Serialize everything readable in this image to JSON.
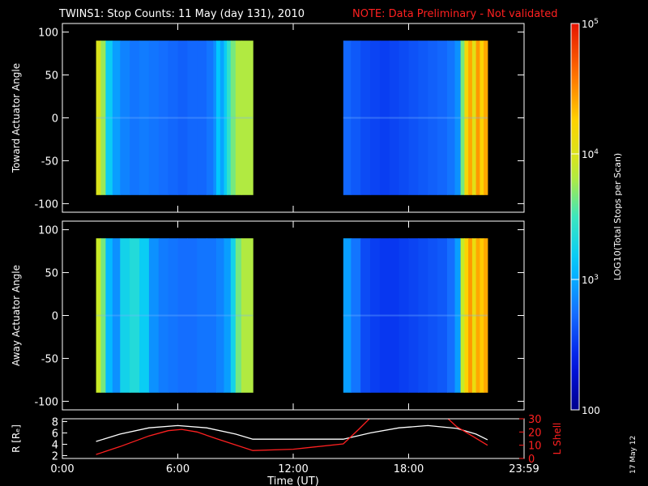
{
  "header": {
    "title": "TWINS1: Stop Counts: 11 May (day 131), 2010",
    "note": "NOTE: Data Preliminary - Not validated",
    "note_color": "#ff2020"
  },
  "footer": {
    "date_stamp": "17 May 12"
  },
  "chart_data": [
    {
      "type": "heatmap",
      "ylabel": "Toward Actuator Angle",
      "ylim": [
        -110,
        110
      ],
      "yticks": [
        "100",
        "50",
        "0",
        "-50",
        "-100"
      ],
      "xlim_hours": [
        0,
        24
      ],
      "y_extent": [
        -90,
        90
      ],
      "segments": [
        {
          "start": 1.75,
          "end": 9.9,
          "columns": [
            {
              "t": 1.75,
              "v": 0.66
            },
            {
              "t": 2.0,
              "v": 0.58
            },
            {
              "t": 2.25,
              "v": 0.4
            },
            {
              "t": 2.6,
              "v": 0.32
            },
            {
              "t": 3.0,
              "v": 0.28
            },
            {
              "t": 3.5,
              "v": 0.26
            },
            {
              "t": 4.0,
              "v": 0.27
            },
            {
              "t": 4.5,
              "v": 0.26
            },
            {
              "t": 5.0,
              "v": 0.25
            },
            {
              "t": 5.5,
              "v": 0.24
            },
            {
              "t": 6.0,
              "v": 0.23
            },
            {
              "t": 6.5,
              "v": 0.24
            },
            {
              "t": 7.0,
              "v": 0.24
            },
            {
              "t": 7.5,
              "v": 0.26
            },
            {
              "t": 7.85,
              "v": 0.3
            },
            {
              "t": 8.0,
              "v": 0.38
            },
            {
              "t": 8.2,
              "v": 0.33
            },
            {
              "t": 8.4,
              "v": 0.4
            },
            {
              "t": 8.55,
              "v": 0.48
            },
            {
              "t": 8.75,
              "v": 0.55
            },
            {
              "t": 9.0,
              "v": 0.6
            },
            {
              "t": 9.3,
              "v": 0.6
            }
          ]
        },
        {
          "start": 14.6,
          "end": 22.1,
          "columns": [
            {
              "t": 14.6,
              "v": 0.24
            },
            {
              "t": 15.0,
              "v": 0.22
            },
            {
              "t": 15.5,
              "v": 0.2
            },
            {
              "t": 16.0,
              "v": 0.19
            },
            {
              "t": 16.5,
              "v": 0.18
            },
            {
              "t": 17.0,
              "v": 0.19
            },
            {
              "t": 17.5,
              "v": 0.2
            },
            {
              "t": 18.0,
              "v": 0.21
            },
            {
              "t": 18.5,
              "v": 0.22
            },
            {
              "t": 19.0,
              "v": 0.23
            },
            {
              "t": 19.5,
              "v": 0.24
            },
            {
              "t": 20.0,
              "v": 0.26
            },
            {
              "t": 20.4,
              "v": 0.3
            },
            {
              "t": 20.7,
              "v": 0.55
            },
            {
              "t": 20.9,
              "v": 0.72
            },
            {
              "t": 21.1,
              "v": 0.8
            },
            {
              "t": 21.3,
              "v": 0.68
            },
            {
              "t": 21.5,
              "v": 0.82
            },
            {
              "t": 21.7,
              "v": 0.74
            },
            {
              "t": 21.9,
              "v": 0.8
            }
          ]
        }
      ]
    },
    {
      "type": "heatmap",
      "ylabel": "Away Actuator Angle",
      "ylim": [
        -110,
        110
      ],
      "yticks": [
        "100",
        "50",
        "0",
        "-50",
        "-100"
      ],
      "xlim_hours": [
        0,
        24
      ],
      "y_extent": [
        -90,
        90
      ],
      "segments": [
        {
          "start": 1.75,
          "end": 9.9,
          "columns": [
            {
              "t": 1.75,
              "v": 0.62
            },
            {
              "t": 2.0,
              "v": 0.55
            },
            {
              "t": 2.25,
              "v": 0.36
            },
            {
              "t": 2.6,
              "v": 0.3
            },
            {
              "t": 3.0,
              "v": 0.42
            },
            {
              "t": 3.5,
              "v": 0.45
            },
            {
              "t": 4.0,
              "v": 0.4
            },
            {
              "t": 4.5,
              "v": 0.3
            },
            {
              "t": 5.0,
              "v": 0.27
            },
            {
              "t": 5.5,
              "v": 0.26
            },
            {
              "t": 6.0,
              "v": 0.25
            },
            {
              "t": 6.5,
              "v": 0.25
            },
            {
              "t": 7.0,
              "v": 0.26
            },
            {
              "t": 7.5,
              "v": 0.26
            },
            {
              "t": 8.0,
              "v": 0.28
            },
            {
              "t": 8.4,
              "v": 0.32
            },
            {
              "t": 8.75,
              "v": 0.42
            },
            {
              "t": 9.0,
              "v": 0.55
            },
            {
              "t": 9.3,
              "v": 0.6
            }
          ]
        },
        {
          "start": 14.6,
          "end": 22.1,
          "columns": [
            {
              "t": 14.6,
              "v": 0.32
            },
            {
              "t": 15.0,
              "v": 0.26
            },
            {
              "t": 15.5,
              "v": 0.2
            },
            {
              "t": 16.0,
              "v": 0.18
            },
            {
              "t": 16.5,
              "v": 0.17
            },
            {
              "t": 17.0,
              "v": 0.17
            },
            {
              "t": 17.5,
              "v": 0.18
            },
            {
              "t": 18.0,
              "v": 0.19
            },
            {
              "t": 18.5,
              "v": 0.2
            },
            {
              "t": 19.0,
              "v": 0.21
            },
            {
              "t": 19.5,
              "v": 0.22
            },
            {
              "t": 20.0,
              "v": 0.25
            },
            {
              "t": 20.4,
              "v": 0.32
            },
            {
              "t": 20.7,
              "v": 0.62
            },
            {
              "t": 20.9,
              "v": 0.74
            },
            {
              "t": 21.1,
              "v": 0.82
            },
            {
              "t": 21.3,
              "v": 0.7
            },
            {
              "t": 21.5,
              "v": 0.8
            },
            {
              "t": 21.7,
              "v": 0.76
            },
            {
              "t": 21.9,
              "v": 0.8
            }
          ]
        }
      ]
    },
    {
      "type": "line",
      "ylabel": "R [Rₑ]",
      "y2label": "L Shell",
      "xlabel": "Time (UT)",
      "xticks": [
        "0:00",
        "6:00",
        "12:00",
        "18:00",
        "23:59"
      ],
      "ylim": [
        1.5,
        8.5
      ],
      "yticks": [
        "8",
        "6",
        "4",
        "2"
      ],
      "y2lim": [
        0,
        30
      ],
      "y2ticks": [
        "30",
        "20",
        "10",
        "0"
      ],
      "series": [
        {
          "axis": "left",
          "color": "#ffffff",
          "x": [
            1.75,
            3.0,
            4.5,
            6.0,
            7.5,
            9.0,
            9.9,
            12.0,
            14.6,
            16.0,
            17.5,
            19.0,
            20.5,
            21.5,
            22.1
          ],
          "y": [
            4.5,
            5.8,
            6.9,
            7.3,
            6.9,
            5.8,
            4.9,
            4.9,
            4.9,
            6.0,
            6.9,
            7.3,
            6.8,
            5.8,
            4.8
          ]
        },
        {
          "axis": "right",
          "color": "#ff2020",
          "x": [
            1.75,
            3.0,
            4.5,
            5.5,
            6.2,
            7.0,
            8.0,
            9.9,
            12.0,
            14.6,
            15.4,
            16.1
          ],
          "y": [
            3,
            9,
            17,
            21,
            22,
            20,
            15,
            6,
            7,
            11,
            22,
            32
          ]
        },
        {
          "axis": "right",
          "color": "#ff2020",
          "x": [
            19.9,
            20.5,
            21.3,
            22.1
          ],
          "y": [
            32,
            24,
            17,
            10
          ]
        }
      ]
    }
  ],
  "colorbar": {
    "label": "LOG10(Total Stops per Scan)",
    "ticks": [
      "10",
      "10",
      "10",
      "100"
    ],
    "tick_exponents": [
      "5",
      "4",
      "3",
      ""
    ]
  }
}
